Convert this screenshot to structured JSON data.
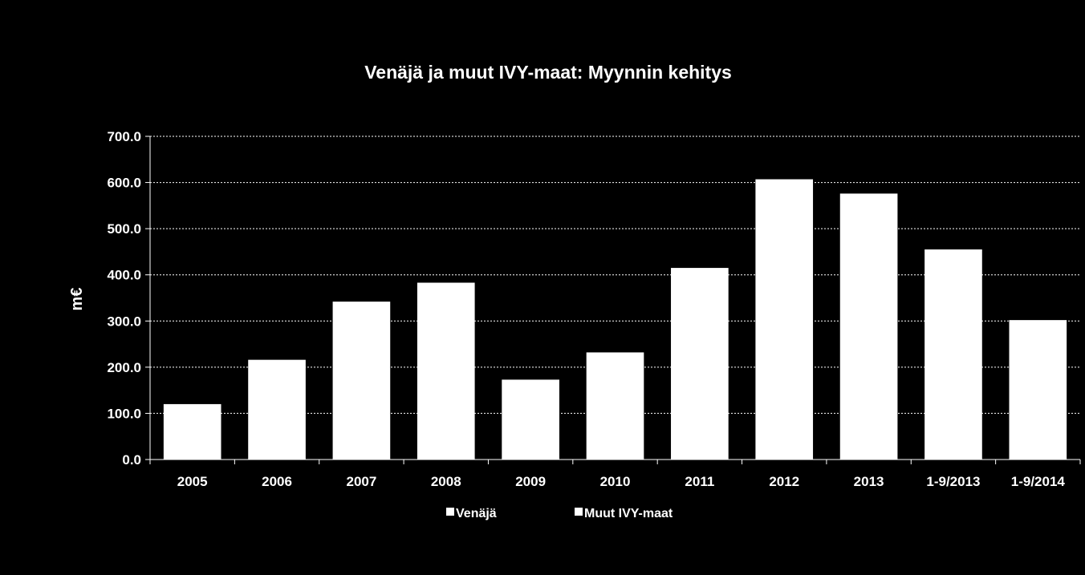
{
  "chart_data": {
    "type": "bar",
    "title": "Venäjä ja muut IVY-maat: Myynnin kehitys",
    "xlabel": "",
    "ylabel": "m€",
    "ylim": [
      0,
      700
    ],
    "yticks": [
      0,
      100,
      200,
      300,
      400,
      500,
      600,
      700
    ],
    "ytick_labels": [
      "0.0",
      "100.0",
      "200.0",
      "300.0",
      "400.0",
      "500.0",
      "600.0",
      "700.0"
    ],
    "grid": "horizontal-dashed",
    "legend_position": "bottom",
    "categories": [
      "2005",
      "2006",
      "2007",
      "2008",
      "2009",
      "2010",
      "2011",
      "2012",
      "2013",
      "1-9/2013",
      "1-9/2014"
    ],
    "series": [
      {
        "name": "Venäjä",
        "color": "#ffffff",
        "values": [
          120,
          216,
          342,
          383,
          173,
          232,
          415,
          607,
          576,
          455,
          302
        ]
      },
      {
        "name": "Muut IVY-maat",
        "color": "#ffffff",
        "values": [
          0,
          0,
          0,
          0,
          0,
          0,
          0,
          0,
          0,
          0,
          0
        ]
      }
    ],
    "colors": {
      "background": "#000000",
      "bar": "#ffffff",
      "text": "#ffffff",
      "grid": "#ffffff"
    }
  }
}
